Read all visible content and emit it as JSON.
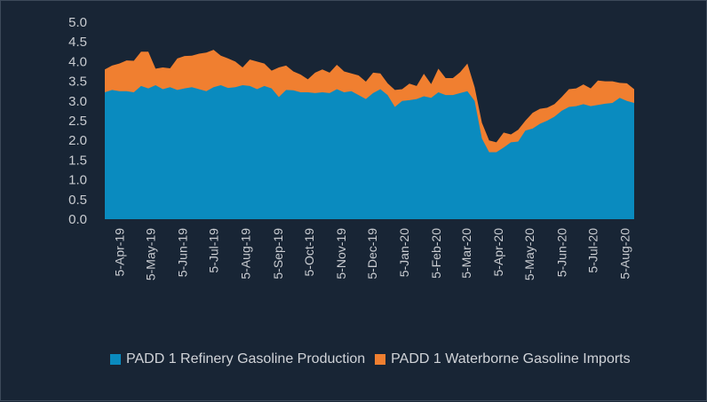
{
  "chart_data": {
    "type": "area",
    "stacked": true,
    "title": "",
    "xlabel": "",
    "ylabel": "",
    "ylim": [
      0,
      5
    ],
    "yticks": [
      "0.0",
      "0.5",
      "1.0",
      "1.5",
      "2.0",
      "2.5",
      "3.0",
      "3.5",
      "4.0",
      "4.5",
      "5.0"
    ],
    "x_tick_labels": [
      "5-Apr-19",
      "5-May-19",
      "5-Jun-19",
      "5-Jul-19",
      "5-Aug-19",
      "5-Sep-19",
      "5-Oct-19",
      "5-Nov-19",
      "5-Dec-19",
      "5-Jan-20",
      "5-Feb-20",
      "5-Mar-20",
      "5-Apr-20",
      "5-May-20",
      "5-Jun-20",
      "5-Jul-20",
      "5-Aug-20"
    ],
    "grid": false,
    "legend_position": "bottom",
    "x_start": "2019-03-22",
    "x_frequency": "weekly",
    "series": [
      {
        "name": "PADD 1 Refinery Gasoline Production",
        "color": "#0a8bbf",
        "values": [
          3.22,
          3.28,
          3.25,
          3.25,
          3.22,
          3.38,
          3.32,
          3.4,
          3.3,
          3.35,
          3.28,
          3.32,
          3.35,
          3.3,
          3.25,
          3.35,
          3.4,
          3.33,
          3.35,
          3.4,
          3.38,
          3.3,
          3.38,
          3.32,
          3.1,
          3.28,
          3.27,
          3.22,
          3.22,
          3.2,
          3.22,
          3.2,
          3.3,
          3.22,
          3.25,
          3.15,
          3.05,
          3.2,
          3.3,
          3.15,
          2.85,
          3.0,
          3.02,
          3.05,
          3.12,
          3.08,
          3.22,
          3.15,
          3.15,
          3.2,
          3.25,
          3.0,
          2.05,
          1.7,
          1.7,
          1.82,
          1.95,
          1.97,
          2.25,
          2.3,
          2.42,
          2.5,
          2.6,
          2.75,
          2.85,
          2.87,
          2.92,
          2.87,
          2.9,
          2.93,
          2.95,
          3.08,
          3.0,
          2.95
        ]
      },
      {
        "name": "PADD 1 Waterborne Gasoline Imports",
        "color": "#f07f30",
        "values": [
          0.58,
          0.62,
          0.7,
          0.78,
          0.8,
          0.87,
          0.93,
          0.42,
          0.55,
          0.48,
          0.8,
          0.82,
          0.8,
          0.9,
          0.98,
          0.95,
          0.75,
          0.75,
          0.65,
          0.45,
          0.67,
          0.7,
          0.57,
          0.45,
          0.75,
          0.62,
          0.48,
          0.45,
          0.33,
          0.52,
          0.58,
          0.52,
          0.62,
          0.53,
          0.45,
          0.5,
          0.44,
          0.52,
          0.4,
          0.3,
          0.43,
          0.3,
          0.42,
          0.33,
          0.57,
          0.35,
          0.6,
          0.43,
          0.43,
          0.53,
          0.7,
          0.35,
          0.4,
          0.3,
          0.25,
          0.38,
          0.2,
          0.3,
          0.25,
          0.4,
          0.38,
          0.33,
          0.32,
          0.35,
          0.45,
          0.45,
          0.5,
          0.45,
          0.62,
          0.57,
          0.55,
          0.38,
          0.45,
          0.35
        ]
      }
    ]
  }
}
